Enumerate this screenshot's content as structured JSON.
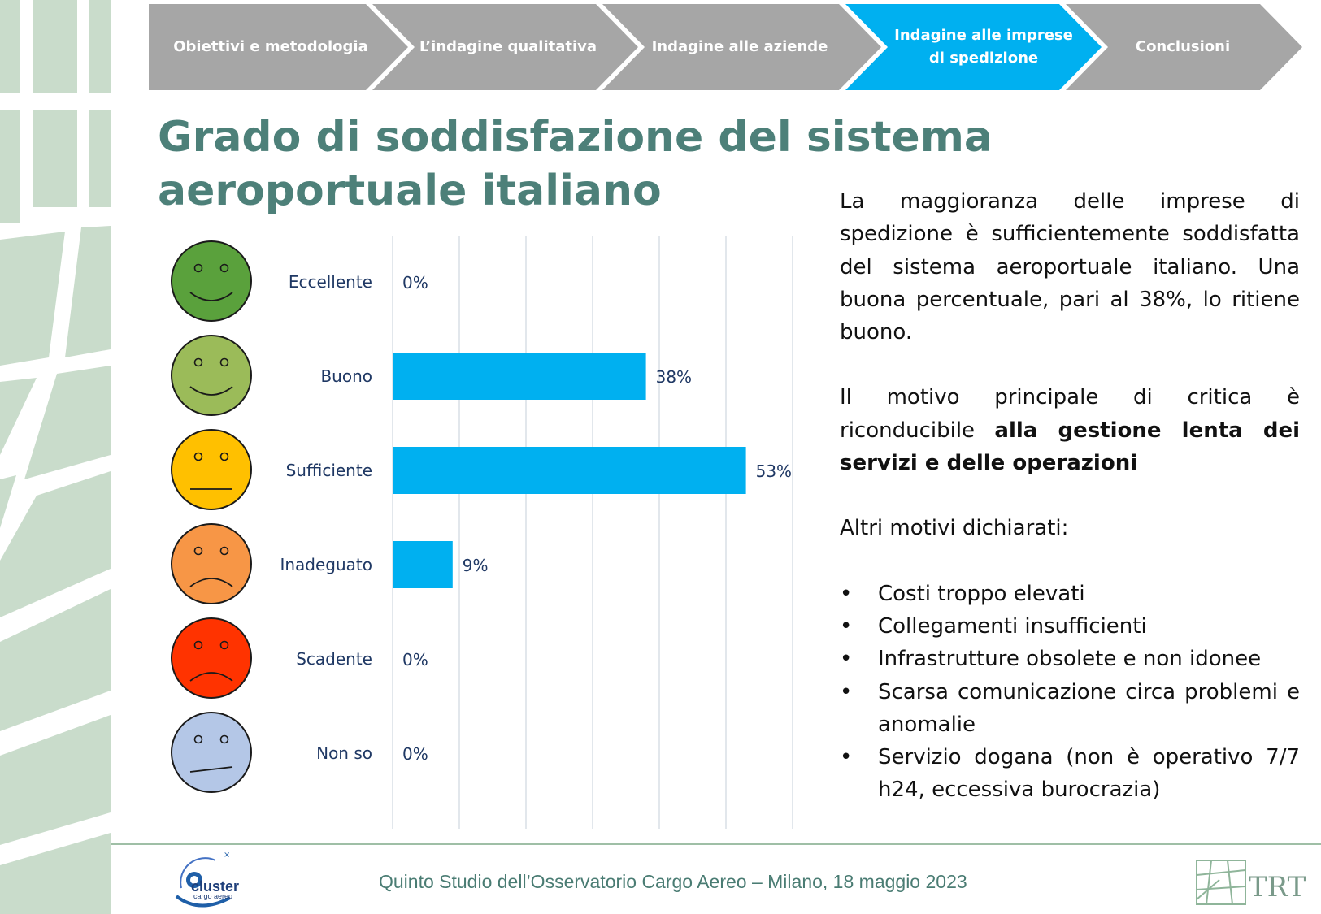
{
  "nav": {
    "steps": [
      {
        "label": "Obiettivi e metodologia",
        "active": false
      },
      {
        "label": "L’indagine qualitativa",
        "active": false
      },
      {
        "label": "Indagine alle aziende",
        "active": false
      },
      {
        "label": "Indagine alle imprese di spedizione",
        "active": true
      },
      {
        "label": "Conclusioni",
        "active": false
      }
    ],
    "inactive_color": "#a6a6a6",
    "active_color": "#00b0f0"
  },
  "title": "Grado di soddisfazione del sistema aeroportuale italiano",
  "chart_data": {
    "type": "bar",
    "orientation": "horizontal",
    "categories": [
      "Eccellente",
      "Buono",
      "Sufficiente",
      "Inadeguato",
      "Scadente",
      "Non so"
    ],
    "values": [
      0,
      38,
      53,
      9,
      0,
      0
    ],
    "data_labels": [
      "0%",
      "38%",
      "53%",
      "9%",
      "0%",
      "0%"
    ],
    "unit": "%",
    "xlim": [
      0,
      60
    ],
    "grid": true,
    "bar_color": "#00b0f0",
    "face_icons": [
      {
        "category": "Eccellente",
        "mood": "happy",
        "color": "#5aa13c"
      },
      {
        "category": "Buono",
        "mood": "happy",
        "color": "#9bbb59"
      },
      {
        "category": "Sufficiente",
        "mood": "neutral",
        "color": "#ffc000"
      },
      {
        "category": "Inadeguato",
        "mood": "sad",
        "color": "#f79646"
      },
      {
        "category": "Scadente",
        "mood": "sad",
        "color": "#ff3300"
      },
      {
        "category": "Non so",
        "mood": "unsure",
        "color": "#b4c7e7"
      }
    ]
  },
  "text": {
    "para1": "La maggioranza delle imprese di spedizione è sufficientemente soddisfatta del sistema aeroportuale italiano. Una buona percentuale, pari al 38%, lo ritiene buono.",
    "para2_prefix": "Il motivo principale di critica è riconducibile ",
    "para2_bold": "alla gestione lenta dei servizi e delle operazioni",
    "para3": "Altri motivi dichiarati:",
    "bullet_symbol": "•",
    "bullets": [
      "Costi troppo elevati",
      "Collegamenti insufficienti",
      "Infrastrutture obsolete e non idonee",
      "Scarsa comunicazione circa problemi e anomalie",
      "Servizio dogana (non è operativo 7/7 h24, eccessiva burocrazia)"
    ]
  },
  "footer": {
    "text": "Quinto Studio dell’Osservatorio Cargo Aereo – Milano, 18 maggio 2023",
    "logo_left": "cluster",
    "logo_left_sub": "cargo aereo",
    "logo_right": "TRT"
  }
}
